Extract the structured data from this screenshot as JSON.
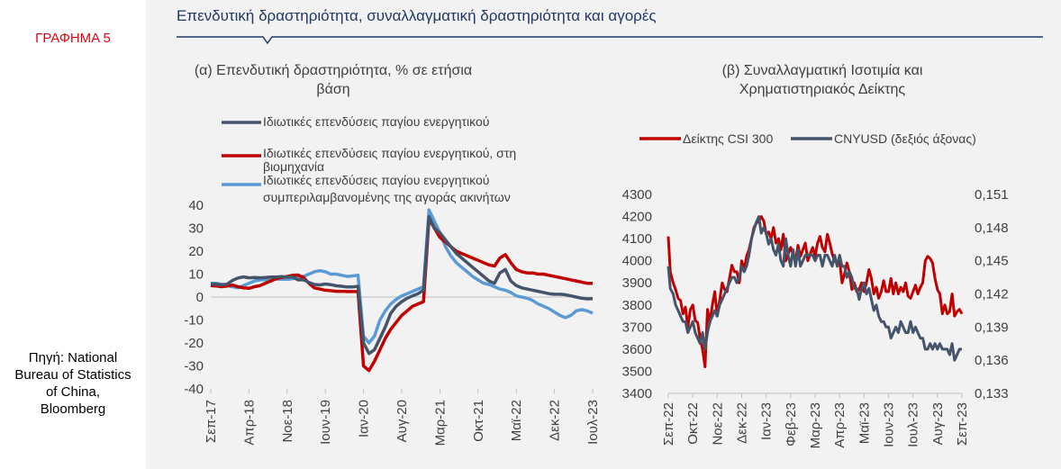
{
  "figure_label": "ΓΡΑΦΗΜΑ 5",
  "source_note": "Πηγή: National Bureau of Statistics of China, Bloomberg",
  "header_title": "Επενδυτική δραστηριότητα, συναλλαγματική δραστηριότητα και αγορές",
  "colors": {
    "header_line": "#1f3864",
    "dark": "#44546a",
    "red": "#c00000",
    "blue": "#5b9bd5",
    "label_red": "#e30613"
  },
  "chart_data": [
    {
      "type": "line",
      "title_lines": [
        "(α) Επενδυτική δραστηριότητα, % σε ετήσια",
        "βάση"
      ],
      "x": [
        "Σεπ-17",
        "Οκτ-17",
        "Νοε-17",
        "Δεκ-17",
        "Ιαν-18",
        "Φεβ-18",
        "Μαρ-18",
        "Απρ-18",
        "Μαϊ-18",
        "Ιουν-18",
        "Ιουλ-18",
        "Αυγ-18",
        "Σεπ-18",
        "Οκτ-18",
        "Νοε-18",
        "Δεκ-18",
        "Ιαν-19",
        "Φεβ-19",
        "Μαρ-19",
        "Απρ-19",
        "Μαϊ-19",
        "Ιουν-19",
        "Ιουλ-19",
        "Αυγ-19",
        "Σεπ-19",
        "Οκτ-19",
        "Νοε-19",
        "Δεκ-19",
        "Ιαν-20",
        "Φεβ-20",
        "Μαρ-20",
        "Απρ-20",
        "Μαϊ-20",
        "Ιουν-20",
        "Ιουλ-20",
        "Αυγ-20",
        "Σεπ-20",
        "Οκτ-20",
        "Νοε-20",
        "Δεκ-20",
        "Ιαν-21",
        "Φεβ-21",
        "Μαρ-21",
        "Απρ-21",
        "Μαϊ-21",
        "Ιουν-21",
        "Ιουλ-21",
        "Αυγ-21",
        "Σεπ-21",
        "Οκτ-21",
        "Νοε-21",
        "Δεκ-21",
        "Ιαν-22",
        "Φεβ-22",
        "Μαρ-22",
        "Απρ-22",
        "Μαϊ-22",
        "Ιουν-22",
        "Ιουλ-22",
        "Αυγ-22",
        "Σεπ-22",
        "Οκτ-22",
        "Νοε-22",
        "Δεκ-22",
        "Ιαν-23",
        "Φεβ-23",
        "Μαρ-23",
        "Απρ-23",
        "Μαϊ-23",
        "Ιουν-23",
        "Ιουλ-23"
      ],
      "x_tick_labels": [
        "Σεπ-17",
        "Απρ-18",
        "Νοε-18",
        "Ιουν-19",
        "Ιαν-20",
        "Αυγ-20",
        "Μαρ-21",
        "Οκτ-21",
        "Μαϊ-22",
        "Δεκ-22",
        "Ιουλ-23"
      ],
      "x_tick_indices": [
        0,
        7,
        14,
        21,
        28,
        35,
        42,
        49,
        56,
        63,
        70
      ],
      "y_ticks": [
        40,
        30,
        20,
        10,
        0,
        -10,
        -20,
        -30,
        -40
      ],
      "ylim": [
        -40,
        40
      ],
      "grid": false,
      "legend_position": "top",
      "series": [
        {
          "name": "Ιδιωτικές επενδύσεις παγίου ενεργητικού",
          "color": "#44546a",
          "values": [
            5.7,
            5.6,
            5.4,
            5.6,
            7.3,
            8.3,
            8.8,
            8.4,
            8.5,
            8.4,
            8.5,
            8.7,
            8.7,
            8.9,
            8.7,
            8.7,
            7.5,
            7.5,
            6.4,
            5.5,
            5.3,
            5.7,
            5.4,
            4.9,
            4.7,
            4.4,
            4.4,
            4.7,
            -20,
            -24.6,
            -23,
            -18,
            -13,
            -7,
            -4,
            -2,
            -0.5,
            0.5,
            1.5,
            3,
            35,
            30,
            28,
            25,
            22,
            19,
            17,
            15,
            13,
            11,
            9,
            7,
            6,
            10.5,
            12,
            7,
            5,
            4,
            3.5,
            3,
            2.5,
            2,
            1.5,
            1.2,
            1.2,
            1,
            0.5,
            0,
            -0.5,
            -0.8,
            -0.7
          ]
        },
        {
          "name": "Ιδιωτικές επενδύσεις παγίου ενεργητικού, στη βιομηχανία",
          "color": "#c00000",
          "values": [
            5,
            4.8,
            4.5,
            4.8,
            5.2,
            4.5,
            4,
            3.8,
            4.5,
            5,
            6,
            7,
            8,
            8.5,
            9,
            9.5,
            9.6,
            8.5,
            6,
            4,
            3.5,
            3,
            2.8,
            2.5,
            2.5,
            2.4,
            2.4,
            2.4,
            -30,
            -32,
            -28,
            -23,
            -18,
            -14,
            -11,
            -8,
            -6,
            -4,
            -3,
            -2,
            34,
            30,
            26,
            24,
            22,
            20,
            19,
            18,
            17,
            16,
            15,
            14,
            13.5,
            17,
            18.5,
            15,
            12,
            11,
            10.5,
            10.5,
            10,
            10,
            9.5,
            9,
            8.5,
            8,
            7.5,
            7,
            6.5,
            6,
            6
          ]
        },
        {
          "name": "Ιδιωτικές επενδύσεις παγίου ενεργητικού συμπεριλαμβανομένης της αγοράς ακινήτων",
          "color": "#5b9bd5",
          "values": [
            6,
            6,
            5.5,
            5,
            4.5,
            4,
            5,
            6,
            7,
            7.5,
            7.5,
            7.6,
            7.8,
            7.8,
            7.7,
            8,
            8.5,
            9,
            10,
            11,
            11.5,
            11,
            10,
            10,
            9.5,
            9,
            9.2,
            9.5,
            -17,
            -20,
            -17,
            -10,
            -6,
            -3,
            -1,
            0.5,
            1.5,
            2.5,
            3.5,
            4.5,
            38,
            33,
            28,
            22,
            18,
            15,
            13,
            11,
            9,
            7.5,
            6,
            5.5,
            4.5,
            3.5,
            3,
            2,
            0.5,
            0,
            -0.5,
            -1.5,
            -3,
            -4,
            -5,
            -6.5,
            -8,
            -9,
            -8,
            -6,
            -5.5,
            -6,
            -7
          ]
        }
      ]
    },
    {
      "type": "line",
      "title_lines": [
        "(β) Συναλλαγματική Ισοτιμία και",
        "Χρηματιστηριακός Δείκτης"
      ],
      "x_tick_labels": [
        "Σεπ-22",
        "Οκτ-22",
        "Νοε-22",
        "Δεκ-22",
        "Ιαν-23",
        "Φεβ-23",
        "Μαρ-23",
        "Απρ-23",
        "Μαϊ-23",
        "Ιουν-23",
        "Ιουλ-23",
        "Αυγ-23",
        "Σεπ-23"
      ],
      "y_left_ticks": [
        4300,
        4200,
        4100,
        4000,
        3900,
        3800,
        3700,
        3600,
        3500,
        3400
      ],
      "y_left_lim": [
        3400,
        4300
      ],
      "y_right_ticks": [
        "0,151",
        "0,148",
        "0,145",
        "0,142",
        "0,139",
        "0,136",
        "0,133"
      ],
      "y_right_lim": [
        0.133,
        0.151
      ],
      "grid": false,
      "legend_position": "top",
      "series": [
        {
          "name": "Δείκτης CSI 300",
          "color": "#c00000",
          "axis": "left",
          "x": [
            0,
            0.08,
            0.2,
            0.3,
            0.4,
            0.5,
            0.6,
            0.7,
            0.8,
            0.9,
            1.0,
            1.1,
            1.2,
            1.3,
            1.4,
            1.5,
            1.6,
            1.7,
            1.8,
            1.9,
            2.0,
            2.1,
            2.2,
            2.3,
            2.4,
            2.5,
            2.6,
            2.7,
            2.8,
            2.9,
            3.0,
            3.1,
            3.2,
            3.3,
            3.4,
            3.5,
            3.6,
            3.7,
            3.8,
            3.9,
            4.0,
            4.1,
            4.2,
            4.3,
            4.4,
            4.5,
            4.6,
            4.7,
            4.8,
            4.9,
            5.0,
            5.1,
            5.2,
            5.3,
            5.4,
            5.5,
            5.6,
            5.7,
            5.8,
            5.9,
            6.0,
            6.1,
            6.2,
            6.3,
            6.4,
            6.5,
            6.6,
            6.7,
            6.8,
            6.9,
            7.0,
            7.1,
            7.2,
            7.3,
            7.4,
            7.5,
            7.6,
            7.7,
            7.8,
            7.9,
            8.0,
            8.1,
            8.2,
            8.3,
            8.4,
            8.5,
            8.6,
            8.7,
            8.8,
            8.9,
            9.0,
            9.1,
            9.2,
            9.3,
            9.4,
            9.5,
            9.6,
            9.7,
            9.8,
            9.9,
            10.0,
            10.1,
            10.2,
            10.3,
            10.4,
            10.5,
            10.6,
            10.7,
            10.8,
            10.9,
            11.0,
            11.1,
            11.2,
            11.3,
            11.4,
            11.5,
            11.6,
            11.7,
            11.8,
            11.9,
            12.0
          ],
          "values": [
            4110,
            3950,
            3900,
            3870,
            3830,
            3820,
            3760,
            3790,
            3700,
            3780,
            3800,
            3730,
            3720,
            3650,
            3600,
            3520,
            3780,
            3720,
            3800,
            3860,
            3750,
            3820,
            3900,
            3870,
            3860,
            3920,
            3980,
            3950,
            3950,
            3900,
            4000,
            3960,
            4020,
            4050,
            4100,
            4150,
            4170,
            4180,
            4200,
            4180,
            4120,
            4130,
            4100,
            4150,
            4080,
            4100,
            4050,
            4120,
            4000,
            4030,
            4060,
            4030,
            4000,
            4070,
            4020,
            4050,
            4080,
            4000,
            4030,
            4060,
            4020,
            4080,
            4110,
            4060,
            4040,
            4120,
            4080,
            4030,
            4000,
            3990,
            4000,
            3900,
            3940,
            3990,
            3950,
            3870,
            3900,
            3860,
            3870,
            3900,
            3860,
            3900,
            3960,
            3920,
            3850,
            3880,
            3830,
            3860,
            3910,
            3860,
            3860,
            3920,
            3850,
            3900,
            3850,
            3880,
            3860,
            3900,
            3840,
            3830,
            3860,
            3890,
            3850,
            3880,
            3900,
            4000,
            4020,
            4010,
            3990,
            3920,
            3870,
            3850,
            3760,
            3800,
            3760,
            3770,
            3850,
            3750,
            3770,
            3780,
            3760
          ]
        },
        {
          "name": "CNYUSD (δεξιός άξονας)",
          "color": "#44546a",
          "axis": "right",
          "x": [
            0,
            0.08,
            0.2,
            0.3,
            0.4,
            0.5,
            0.6,
            0.7,
            0.8,
            0.9,
            1.0,
            1.1,
            1.2,
            1.3,
            1.4,
            1.5,
            1.6,
            1.7,
            1.8,
            1.9,
            2.0,
            2.1,
            2.2,
            2.3,
            2.4,
            2.5,
            2.6,
            2.7,
            2.8,
            2.9,
            3.0,
            3.1,
            3.2,
            3.3,
            3.4,
            3.5,
            3.6,
            3.7,
            3.8,
            3.9,
            4.0,
            4.1,
            4.2,
            4.3,
            4.4,
            4.5,
            4.6,
            4.7,
            4.8,
            4.9,
            5.0,
            5.1,
            5.2,
            5.3,
            5.4,
            5.5,
            5.6,
            5.7,
            5.8,
            5.9,
            6.0,
            6.1,
            6.2,
            6.3,
            6.4,
            6.5,
            6.6,
            6.7,
            6.8,
            6.9,
            7.0,
            7.1,
            7.2,
            7.3,
            7.4,
            7.5,
            7.6,
            7.7,
            7.8,
            7.9,
            8.0,
            8.1,
            8.2,
            8.3,
            8.4,
            8.5,
            8.6,
            8.7,
            8.8,
            8.9,
            9.0,
            9.1,
            9.2,
            9.3,
            9.4,
            9.5,
            9.6,
            9.7,
            9.8,
            9.9,
            10.0,
            10.1,
            10.2,
            10.3,
            10.4,
            10.5,
            10.6,
            10.7,
            10.8,
            10.9,
            11.0,
            11.1,
            11.2,
            11.3,
            11.4,
            11.5,
            11.6,
            11.7,
            11.8,
            11.9,
            12.0
          ],
          "values": [
            0.1445,
            0.1425,
            0.142,
            0.141,
            0.1405,
            0.14,
            0.1395,
            0.1395,
            0.1385,
            0.139,
            0.1395,
            0.1385,
            0.138,
            0.1375,
            0.1385,
            0.137,
            0.1385,
            0.1395,
            0.14,
            0.1405,
            0.14,
            0.141,
            0.1415,
            0.142,
            0.1425,
            0.143,
            0.1435,
            0.1435,
            0.143,
            0.1435,
            0.1445,
            0.144,
            0.1445,
            0.1455,
            0.147,
            0.1478,
            0.1485,
            0.149,
            0.1475,
            0.148,
            0.1475,
            0.1465,
            0.147,
            0.146,
            0.1455,
            0.1465,
            0.145,
            0.1445,
            0.147,
            0.1455,
            0.1445,
            0.146,
            0.1445,
            0.146,
            0.1445,
            0.145,
            0.1455,
            0.1455,
            0.1455,
            0.1455,
            0.145,
            0.1455,
            0.1455,
            0.1445,
            0.1455,
            0.1455,
            0.145,
            0.1445,
            0.1455,
            0.1445,
            0.1455,
            0.1445,
            0.1445,
            0.1435,
            0.144,
            0.1435,
            0.1425,
            0.1425,
            0.1415,
            0.1425,
            0.143,
            0.142,
            0.1425,
            0.1415,
            0.1405,
            0.141,
            0.14,
            0.1395,
            0.1395,
            0.139,
            0.139,
            0.138,
            0.1385,
            0.139,
            0.1385,
            0.1395,
            0.139,
            0.1385,
            0.1385,
            0.1395,
            0.1385,
            0.139,
            0.1385,
            0.138,
            0.138,
            0.137,
            0.137,
            0.1375,
            0.137,
            0.1375,
            0.137,
            0.1375,
            0.137,
            0.137,
            0.137,
            0.1365,
            0.1375,
            0.136,
            0.1365,
            0.137,
            0.137
          ]
        }
      ]
    }
  ]
}
